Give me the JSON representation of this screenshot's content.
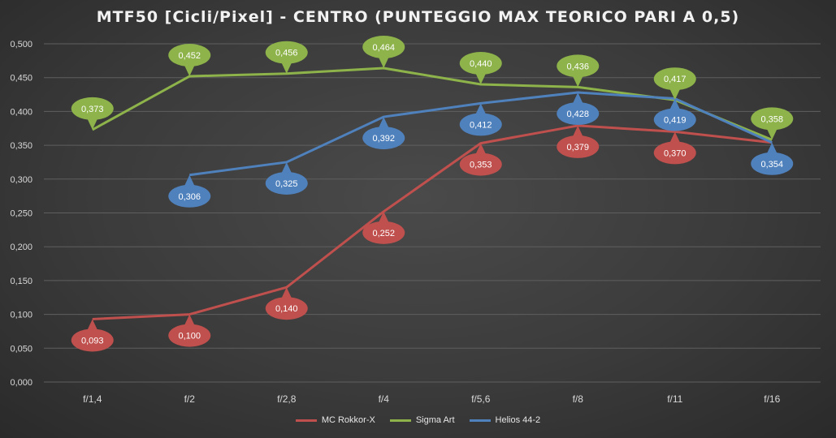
{
  "chart_data": {
    "type": "line",
    "title": "MTF50 [Cicli/Pixel]  - CENTRO (PUNTEGGIO  MAX TEORICO  PARI A 0,5)",
    "categories": [
      "f/1,4",
      "f/2",
      "f/2,8",
      "f/4",
      "f/5,6",
      "f/8",
      "f/11",
      "f/16"
    ],
    "ylim": [
      0,
      0.5
    ],
    "yticks": [
      "0,000",
      "0,050",
      "0,100",
      "0,150",
      "0,200",
      "0,250",
      "0,300",
      "0,350",
      "0,400",
      "0,450",
      "0,500"
    ],
    "grid": true,
    "legend_position": "bottom",
    "series": [
      {
        "name": "MC Rokkor-X",
        "color": "#c0504d",
        "label_position": "below",
        "values": [
          0.093,
          0.1,
          0.14,
          0.252,
          0.353,
          0.379,
          0.37,
          0.354
        ],
        "labels": [
          "0,093",
          "0,100",
          "0,140",
          "0,252",
          "0,353",
          "0,379",
          "0,370",
          null
        ]
      },
      {
        "name": "Sigma Art",
        "color": "#8db34a",
        "label_position": "above",
        "values": [
          0.373,
          0.452,
          0.456,
          0.464,
          0.44,
          0.436,
          0.417,
          0.358
        ],
        "labels": [
          "0,373",
          "0,452",
          "0,456",
          "0,464",
          "0,440",
          "0,436",
          "0,417",
          "0,358"
        ]
      },
      {
        "name": "Helios 44-2",
        "color": "#4f81bd",
        "label_position": "below",
        "values": [
          null,
          0.306,
          0.325,
          0.392,
          0.412,
          0.428,
          0.419,
          0.354
        ],
        "labels": [
          null,
          "0,306",
          "0,325",
          "0,392",
          "0,412",
          "0,428",
          "0,419",
          "0,354"
        ]
      }
    ]
  }
}
